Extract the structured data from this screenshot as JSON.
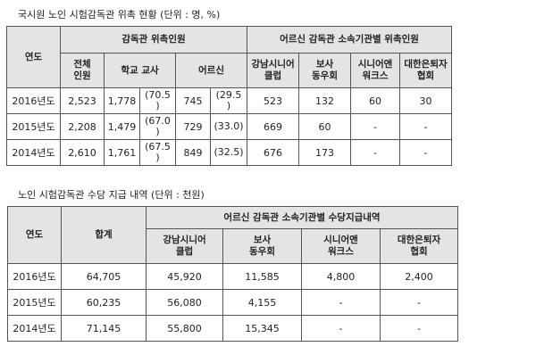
{
  "table1": {
    "title": "국시원 노인 시험감독관 위촉 현황 (단위 : 명, %)",
    "h_year": "연도",
    "h_group1": "감독관 위촉인원",
    "h_group2": "어르신 감독관 소속기관별 위촉인원",
    "h_total": "전체\n인원",
    "h_teacher": "학교 교사",
    "h_elder": "어르신",
    "h_org1": "강남시니어\n클럽",
    "h_org2": "보사\n동우회",
    "h_org3": "시니어앤\n워크스",
    "h_org4": "대한은퇴자\n협회",
    "rows": [
      {
        "year": "2016년도",
        "total": "2,523",
        "teacher": "1,778",
        "teacher_pct": "(70.5\n)",
        "elder": "745",
        "elder_pct": "(29.5\n)",
        "org1": "523",
        "org2": "132",
        "org3": "60",
        "org4": "30"
      },
      {
        "year": "2015년도",
        "total": "2,208",
        "teacher": "1,479",
        "teacher_pct": "(67.0\n)",
        "elder": "729",
        "elder_pct": "(33.0)",
        "org1": "669",
        "org2": "60",
        "org3": "-",
        "org4": "-"
      },
      {
        "year": "2014년도",
        "total": "2,610",
        "teacher": "1,761",
        "teacher_pct": "(67.5\n)",
        "elder": "849",
        "elder_pct": "(32.5)",
        "org1": "676",
        "org2": "173",
        "org3": "-",
        "org4": "-"
      }
    ]
  },
  "table2": {
    "title": "노인 시험감독관 수당 지급 내역 (단위 : 천원)",
    "h_year": "연도",
    "h_sum": "합계",
    "h_group": "어르신 감독관 소속기관별 수당지급내역",
    "h_org1": "강남시니어\n클럽",
    "h_org2": "보사\n동우회",
    "h_org3": "시니어앤\n워크스",
    "h_org4": "대한은퇴자\n협회",
    "rows": [
      {
        "year": "2016년도",
        "sum": "64,705",
        "org1": "45,920",
        "org2": "11,585",
        "org3": "4,800",
        "org4": "2,400"
      },
      {
        "year": "2015년도",
        "sum": "60,235",
        "org1": "56,080",
        "org2": "4,155",
        "org3": "-",
        "org4": "-"
      },
      {
        "year": "2014년도",
        "sum": "71,145",
        "org1": "55,800",
        "org2": "15,345",
        "org3": "-",
        "org4": "-"
      }
    ]
  }
}
